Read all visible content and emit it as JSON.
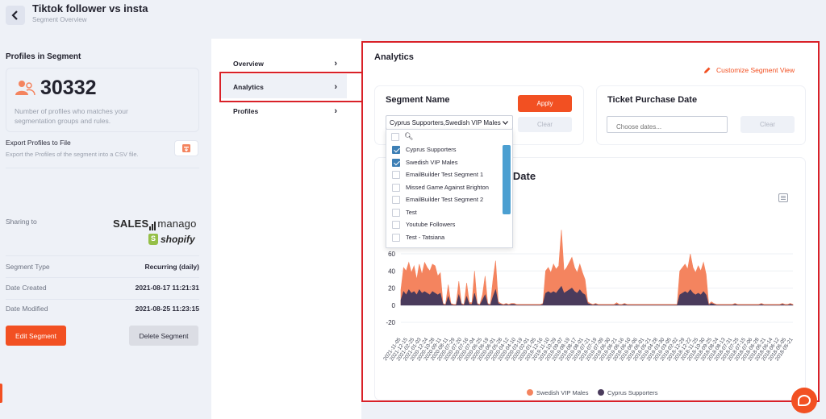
{
  "header": {
    "title": "Tiktok follower vs insta",
    "subtitle": "Segment Overview"
  },
  "profiles": {
    "section_title": "Profiles in Segment",
    "count": "30332",
    "description": "Number of profiles who matches your segmentation groups and rules.",
    "export_title": "Export Profiles to File",
    "export_desc": "Export the Profiles of the segment into a CSV file."
  },
  "sharing": {
    "label": "Sharing to",
    "logo_sales": "SALES",
    "logo_manago": "manago",
    "logo_shopify": "shopify"
  },
  "info": [
    {
      "key": "Segment Type",
      "value": "Recurring (daily)"
    },
    {
      "key": "Date Created",
      "value": "2021-08-17 11:21:31"
    },
    {
      "key": "Date Modified",
      "value": "2021-08-25 11:23:15"
    }
  ],
  "actions": {
    "edit": "Edit Segment",
    "delete": "Delete Segment"
  },
  "nav": [
    {
      "label": "Overview"
    },
    {
      "label": "Analytics"
    },
    {
      "label": "Profiles"
    }
  ],
  "analytics": {
    "title": "Analytics",
    "customize": "Customize Segment View"
  },
  "segment_filter": {
    "title": "Segment Name",
    "selected": "Cyprus Supporters,Swedish VIP Males",
    "apply": "Apply",
    "clear": "Clear",
    "options": [
      {
        "label": "Cyprus Supporters",
        "checked": true
      },
      {
        "label": "Swedish VIP Males",
        "checked": true
      },
      {
        "label": "EmailBuilder Test Segment 1",
        "checked": false
      },
      {
        "label": "Missed Game Against Brighton",
        "checked": false
      },
      {
        "label": "EmailBuilder Test Segment 2",
        "checked": false
      },
      {
        "label": "Test",
        "checked": false
      },
      {
        "label": "Youtube Followers",
        "checked": false
      },
      {
        "label": "Test - Tatsiana",
        "checked": false
      }
    ]
  },
  "ticket_filter": {
    "title": "Ticket Purchase Date",
    "placeholder": "Choose dates...",
    "clear": "Clear"
  },
  "chart_heading": "er Date",
  "colors": {
    "accent": "#f25022",
    "swedish": "#f4845f",
    "cyprus": "#4a3b5c",
    "highlight": "#d92128"
  },
  "chart_data": {
    "type": "area",
    "title": "",
    "xlabel": "",
    "ylabel": "",
    "ylim": [
      -20,
      60
    ],
    "yticks": [
      60,
      40,
      20,
      0,
      -20
    ],
    "legend_position": "bottom",
    "x_tick_labels": [
      "2021-11-05",
      "2021-12-15",
      "2021-02-25",
      "2021-01-03",
      "2020-12-24",
      "2020-10-28",
      "2020-09-11",
      "2020-08-11",
      "2020-07-29",
      "2020-07-20",
      "2020-07-16",
      "2020-07-04",
      "2020-06-25",
      "2020-06-19",
      "2020-06-01",
      "2020-05-28",
      "2020-04-12",
      "2020-04-10",
      "2020-03-19",
      "2020-02-01",
      "2020-01-05",
      "2019-12-16",
      "2019-11-10",
      "2019-10-29",
      "2019-09-07",
      "2019-08-19",
      "2019-08-17",
      "2019-08-01",
      "2019-07-21",
      "2019-07-19",
      "2019-07-09",
      "2019-06-30",
      "2019-06-21",
      "2019-06-16",
      "2019-06-10",
      "2019-06-06",
      "2019-06-01",
      "2019-05-21",
      "2019-04-28",
      "2019-03-30",
      "2019-03-05",
      "2019-02-02",
      "2018-12-29",
      "2018-12-22",
      "2018-11-25",
      "2018-10-30",
      "2018-09-25",
      "2018-08-24",
      "2018-08-13",
      "2018-07-31",
      "2018-07-25",
      "2018-07-15",
      "2018-07-06",
      "2018-06-28",
      "2018-06-21",
      "2018-06-14",
      "2018-06-12",
      "2018-06-05",
      "2018-05-21"
    ],
    "series": [
      {
        "name": "Swedish VIP Males",
        "values": [
          18,
          44,
          40,
          50,
          38,
          46,
          30,
          48,
          36,
          50,
          44,
          40,
          48,
          46,
          34,
          38,
          2,
          1,
          24,
          2,
          1,
          1,
          28,
          2,
          1,
          26,
          3,
          3,
          40,
          2,
          1,
          12,
          34,
          2,
          1,
          30,
          52,
          4,
          2,
          1,
          2,
          1,
          2,
          2,
          1,
          1,
          1,
          1,
          1,
          1,
          1,
          1,
          1,
          1,
          2,
          40,
          44,
          38,
          48,
          42,
          46,
          88,
          40,
          44,
          50,
          56,
          44,
          38,
          48,
          38,
          30,
          4,
          2,
          1,
          2,
          1,
          1,
          1,
          1,
          1,
          1,
          1,
          3,
          1,
          1,
          2,
          1,
          1,
          1,
          1,
          1,
          1,
          1,
          1,
          1,
          1,
          1,
          1,
          1,
          1,
          1,
          1,
          1,
          1,
          1,
          1,
          40,
          44,
          48,
          42,
          60,
          44,
          38,
          46,
          40,
          50,
          36,
          1,
          4,
          2,
          1,
          1,
          1,
          1,
          1,
          1,
          1,
          2,
          1,
          1,
          1,
          1,
          1,
          1,
          1,
          1,
          1,
          2,
          1,
          1,
          1,
          1,
          1,
          1,
          1,
          2,
          1,
          1,
          2,
          1
        ]
      },
      {
        "name": "Cyprus Supporters",
        "values": [
          6,
          16,
          12,
          18,
          14,
          16,
          12,
          18,
          14,
          16,
          14,
          12,
          16,
          14,
          12,
          14,
          1,
          0,
          10,
          1,
          0,
          0,
          12,
          1,
          0,
          10,
          1,
          1,
          14,
          1,
          0,
          6,
          12,
          1,
          0,
          10,
          18,
          2,
          1,
          0,
          1,
          0,
          1,
          1,
          0,
          0,
          0,
          0,
          0,
          0,
          0,
          0,
          0,
          0,
          1,
          14,
          16,
          14,
          16,
          14,
          18,
          22,
          14,
          16,
          18,
          20,
          16,
          14,
          18,
          14,
          12,
          2,
          1,
          0,
          1,
          0,
          0,
          0,
          0,
          0,
          0,
          0,
          1,
          0,
          0,
          1,
          0,
          0,
          0,
          0,
          0,
          0,
          0,
          0,
          0,
          0,
          0,
          0,
          0,
          0,
          0,
          0,
          0,
          0,
          0,
          0,
          12,
          14,
          16,
          14,
          18,
          14,
          12,
          14,
          12,
          16,
          12,
          0,
          2,
          1,
          0,
          0,
          0,
          0,
          0,
          0,
          0,
          1,
          0,
          0,
          0,
          0,
          0,
          0,
          0,
          0,
          0,
          1,
          0,
          0,
          0,
          0,
          0,
          0,
          0,
          1,
          0,
          0,
          1,
          0
        ]
      }
    ]
  }
}
